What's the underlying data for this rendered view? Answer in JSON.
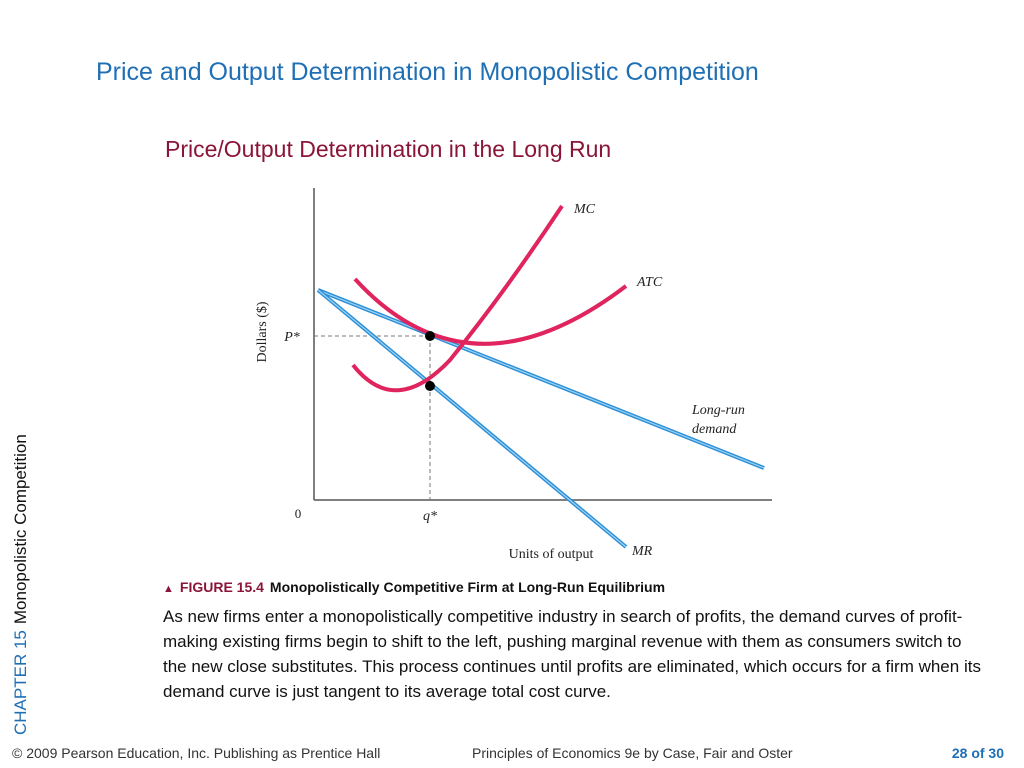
{
  "slide": {
    "title": "Price and Output Determination in Monopolistic Competition",
    "subtitle": "Price/Output Determination in the Long Run",
    "side_chapter": "CHAPTER 15",
    "side_section": "Monopolistic Competition"
  },
  "figure": {
    "ylabel": "Dollars ($)",
    "xlabel": "Units of output",
    "origin": "0",
    "p_label": "P*",
    "q_label": "q*",
    "mc_label": "MC",
    "atc_label": "ATC",
    "demand_label_line1": "Long-run",
    "demand_label_line2": "demand",
    "mr_label": "MR",
    "colors": {
      "cost_curves": "#e0245e",
      "demand_curves": "#2b8fd6",
      "axes": "#555555"
    }
  },
  "caption": {
    "marker": "▲",
    "number": "FIGURE 15.4",
    "title": "Monopolistically Competitive Firm at Long-Run Equilibrium",
    "body": "As new firms enter a monopolistically competitive industry in search of profits, the demand curves of profit-making existing firms begin to shift to the left, pushing marginal revenue with them as consumers switch to the new close substitutes. This process continues until profits are eliminated, which occurs for a firm when its demand curve is just tangent to its average total cost curve."
  },
  "footer": {
    "copyright": "© 2009 Pearson Education, Inc. Publishing as Prentice Hall",
    "book": "Principles of Economics 9e by Case, Fair and Oster",
    "page": "28 of 30"
  }
}
